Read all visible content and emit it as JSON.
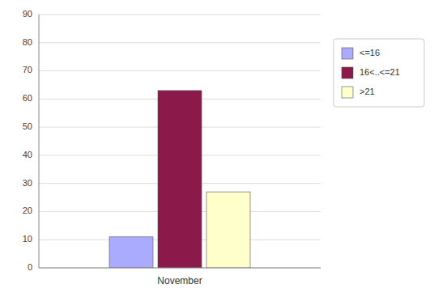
{
  "chart_data": {
    "type": "bar",
    "categories": [
      "November"
    ],
    "series": [
      {
        "name": "<=16",
        "color": "#aaaaff",
        "values": [
          11
        ]
      },
      {
        "name": "16<..<=21",
        "color": "#8b1a4a",
        "values": [
          63
        ]
      },
      {
        "name": ">21",
        "color": "#ffffcc",
        "values": [
          27
        ]
      }
    ],
    "ylim": [
      0,
      90
    ],
    "yticks": [
      0,
      10,
      20,
      30,
      40,
      50,
      60,
      70,
      80,
      90
    ],
    "grid": true,
    "legend": "right"
  }
}
